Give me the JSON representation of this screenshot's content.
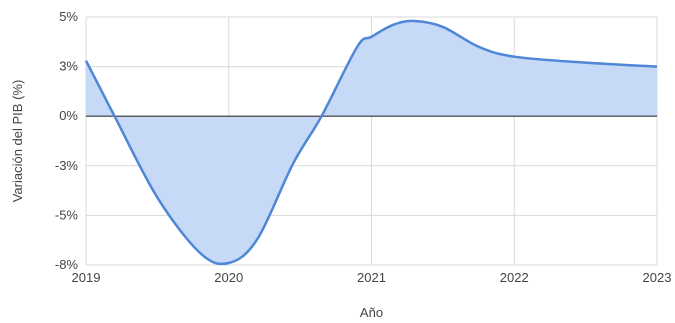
{
  "chart_data": {
    "type": "area",
    "title": "",
    "xlabel": "Año",
    "ylabel": "Variación del PIB (%)",
    "x_ticks": [
      "2019",
      "2020",
      "2021",
      "2022",
      "2023"
    ],
    "y_ticks": [
      "5%",
      "3%",
      "0%",
      "-3%",
      "-5%",
      "-8%"
    ],
    "y_tick_values": [
      5,
      2.5,
      0,
      -2.5,
      -5,
      -7.5
    ],
    "xlim": [
      2019,
      2023
    ],
    "ylim": [
      -7.5,
      5
    ],
    "grid": true,
    "series": [
      {
        "x": [
          2019,
          2019.2,
          2019.5,
          2019.8,
          2020,
          2020.2,
          2020.45,
          2020.65,
          2020.9,
          2021,
          2021.15,
          2021.3,
          2021.5,
          2021.75,
          2022,
          2022.5,
          2023
        ],
        "values": [
          2.8,
          0,
          -4.1,
          -6.9,
          -7.4,
          -6.2,
          -2.4,
          0,
          3.5,
          4.0,
          4.6,
          4.8,
          4.5,
          3.5,
          3.0,
          2.7,
          2.5
        ]
      }
    ]
  },
  "colors": {
    "line": "#4f86d6",
    "fill": "#c6d9f6",
    "grid": "#d9d9d9",
    "zero_line": "#333333"
  }
}
